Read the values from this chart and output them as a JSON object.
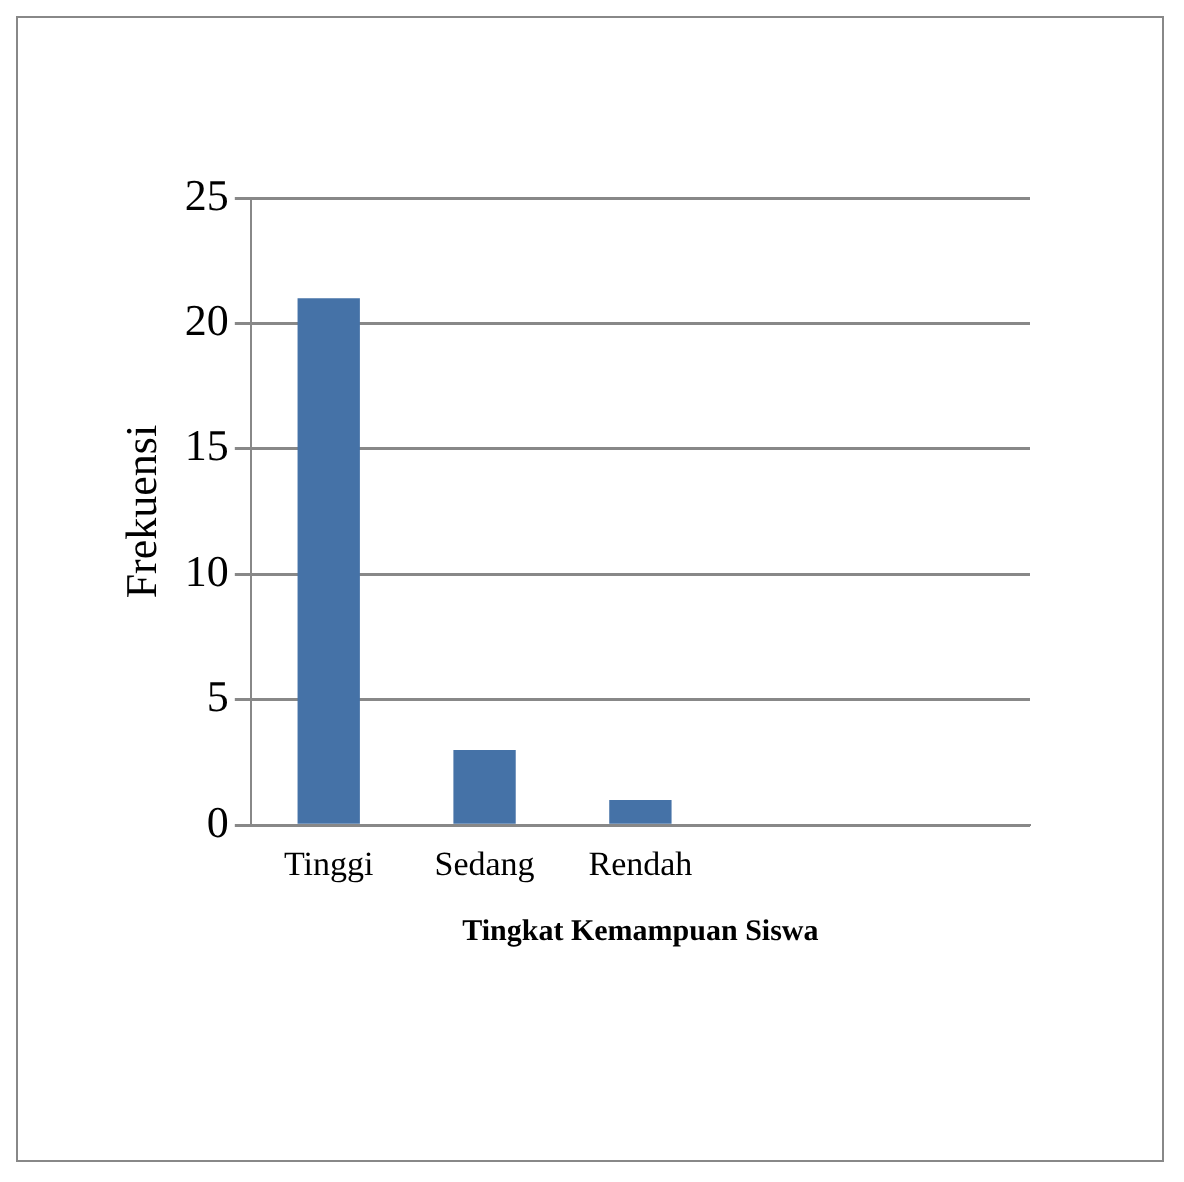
{
  "chart_data": {
    "type": "bar",
    "xlabel": "Tingkat Kemampuan Siswa",
    "ylabel": "Frekuensi",
    "categories": [
      "Tinggi",
      "Sedang",
      "Rendah",
      null,
      null
    ],
    "values": [
      21,
      3,
      1,
      null,
      null
    ],
    "color": "#4572a7",
    "ylim": [
      0,
      25
    ],
    "yticks": [
      0,
      5,
      10,
      15,
      20,
      25
    ],
    "grid": "y",
    "legend": false
  }
}
